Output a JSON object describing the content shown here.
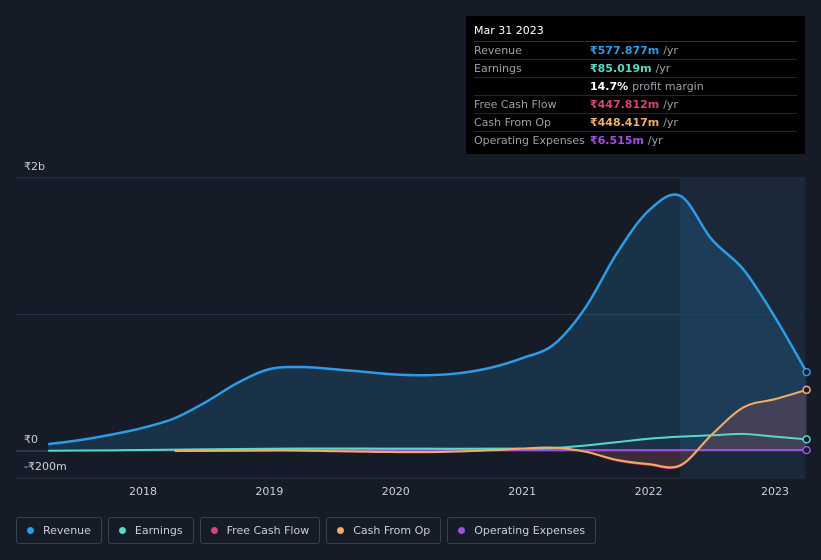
{
  "tooltip": {
    "date": "Mar 31 2023",
    "rows": [
      {
        "label": "Revenue",
        "value": "₹577.877m",
        "unit": "/yr",
        "color": "#2d9be6"
      },
      {
        "label": "Earnings",
        "value": "₹85.019m",
        "unit": "/yr",
        "color": "#5ad8c6"
      },
      {
        "label": "",
        "value": "14.7%",
        "unit": "profit margin",
        "color": "#ffffff"
      },
      {
        "label": "Free Cash Flow",
        "value": "₹447.812m",
        "unit": "/yr",
        "color": "#d2457a"
      },
      {
        "label": "Cash From Op",
        "value": "₹448.417m",
        "unit": "/yr",
        "color": "#f0ad65"
      },
      {
        "label": "Operating Expenses",
        "value": "₹6.515m",
        "unit": "/yr",
        "color": "#a34fe0"
      }
    ]
  },
  "legend": [
    {
      "label": "Revenue",
      "color": "#2d9be6"
    },
    {
      "label": "Earnings",
      "color": "#5ad8c6"
    },
    {
      "label": "Free Cash Flow",
      "color": "#d2457a"
    },
    {
      "label": "Cash From Op",
      "color": "#f0ad65"
    },
    {
      "label": "Operating Expenses",
      "color": "#a34fe0"
    }
  ],
  "chart_data": {
    "type": "line",
    "y_tick_labels": [
      "₹2b",
      "₹0",
      "-₹200m"
    ],
    "x_tick_labels": [
      "2018",
      "2019",
      "2020",
      "2021",
      "2022",
      "2023"
    ],
    "ylim": [
      -200,
      2000
    ],
    "y_unit": "₹m",
    "xlim": [
      2017.2,
      2023.25
    ],
    "highlight_from": 2022.25,
    "grid": true,
    "legend_position": "bottom",
    "series": [
      {
        "name": "Revenue",
        "color": "#2d9be6",
        "fill": true,
        "x": [
          2017.25,
          2017.5,
          2017.75,
          2018.0,
          2018.25,
          2018.5,
          2018.75,
          2019.0,
          2019.25,
          2019.5,
          2019.75,
          2020.0,
          2020.25,
          2020.5,
          2020.75,
          2021.0,
          2021.25,
          2021.5,
          2021.75,
          2022.0,
          2022.25,
          2022.5,
          2022.75,
          2023.0,
          2023.25
        ],
        "y": [
          50,
          80,
          120,
          170,
          240,
          360,
          500,
          600,
          615,
          600,
          580,
          560,
          555,
          570,
          610,
          680,
          780,
          1050,
          1450,
          1760,
          1870,
          1550,
          1330,
          980,
          578
        ]
      },
      {
        "name": "Earnings",
        "color": "#5ad8c6",
        "fill": false,
        "x": [
          2017.25,
          2017.75,
          2018.25,
          2018.75,
          2019.25,
          2019.75,
          2020.25,
          2020.75,
          2021.0,
          2021.25,
          2021.5,
          2021.75,
          2022.0,
          2022.25,
          2022.5,
          2022.75,
          2023.0,
          2023.25
        ],
        "y": [
          2,
          5,
          10,
          15,
          18,
          18,
          17,
          17,
          18,
          22,
          40,
          65,
          90,
          105,
          115,
          125,
          105,
          85
        ]
      },
      {
        "name": "Free Cash Flow",
        "color": "#d2457a",
        "fill": false,
        "x": [
          2018.25,
          2018.75,
          2019.25,
          2019.75,
          2020.25,
          2020.75,
          2021.0,
          2021.25,
          2021.5,
          2021.75,
          2022.0,
          2022.25,
          2022.5,
          2022.75,
          2023.0,
          2023.25
        ],
        "y": [
          0,
          2,
          2,
          -5,
          -8,
          5,
          15,
          20,
          -5,
          -70,
          -100,
          -110,
          120,
          320,
          380,
          448
        ]
      },
      {
        "name": "Cash From Op",
        "color": "#f0ad65",
        "fill": false,
        "x": [
          2018.25,
          2018.75,
          2019.25,
          2019.75,
          2020.25,
          2020.75,
          2021.0,
          2021.25,
          2021.5,
          2021.75,
          2022.0,
          2022.25,
          2022.5,
          2022.75,
          2023.0,
          2023.25
        ],
        "y": [
          0,
          2,
          3,
          -5,
          -8,
          5,
          18,
          25,
          -5,
          -65,
          -95,
          -105,
          120,
          320,
          380,
          448
        ]
      },
      {
        "name": "Operating Expenses",
        "color": "#a34fe0",
        "fill": false,
        "x": [
          2018.25,
          2018.75,
          2019.25,
          2019.75,
          2020.25,
          2020.75,
          2021.25,
          2021.75,
          2022.25,
          2022.75,
          2023.25
        ],
        "y": [
          5,
          5,
          5,
          5,
          5,
          6,
          6,
          6,
          6,
          6,
          6.5
        ]
      }
    ]
  }
}
